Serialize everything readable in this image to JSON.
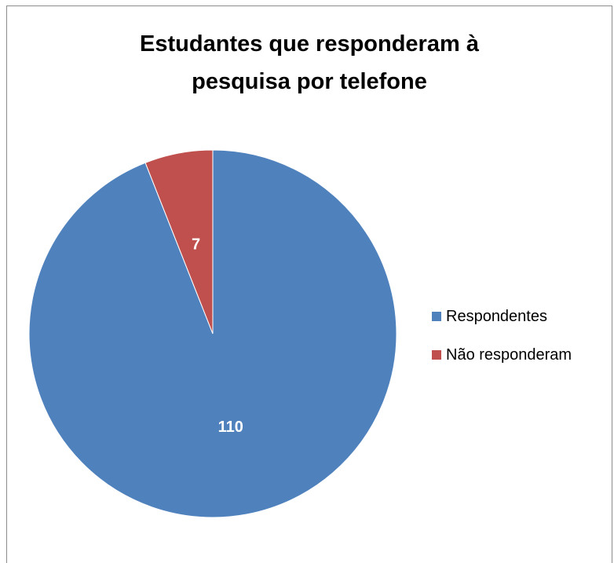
{
  "chart_data": {
    "type": "pie",
    "title_lines": [
      "Estudantes que responderam à",
      "pesquisa por telefone"
    ],
    "slices": [
      {
        "label": "Respondentes",
        "value": 110,
        "color": "#4f81bd"
      },
      {
        "label": "Não responderam",
        "value": 7,
        "color": "#c0504d"
      }
    ],
    "data_labels": [
      "110",
      "7"
    ],
    "legend_position": "right",
    "start_angle_deg": 0,
    "direction": "clockwise"
  }
}
